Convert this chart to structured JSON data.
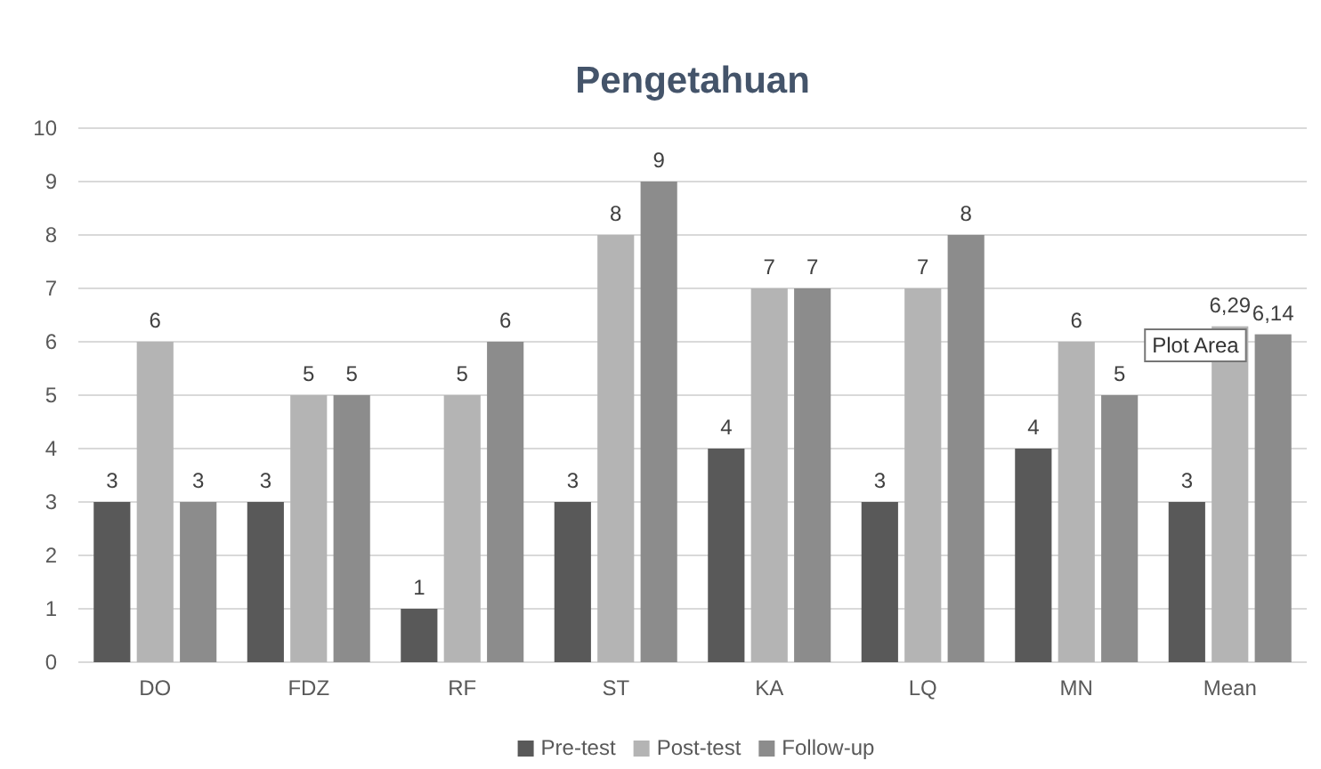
{
  "chart_data": {
    "type": "bar",
    "title": "Pengetahuan",
    "categories": [
      "DO",
      "FDZ",
      "RF",
      "ST",
      "KA",
      "LQ",
      "MN",
      "Mean"
    ],
    "series": [
      {
        "name": "Pre-test",
        "color": "#595959",
        "values": [
          3,
          3,
          1,
          3,
          4,
          3,
          4,
          3
        ],
        "value_labels": [
          "3",
          "3",
          "1",
          "3",
          "4",
          "3",
          "4",
          "3"
        ]
      },
      {
        "name": "Post-test",
        "color": "#b4b4b4",
        "values": [
          6,
          5,
          5,
          8,
          7,
          7,
          6,
          6.29
        ],
        "value_labels": [
          "6",
          "5",
          "5",
          "8",
          "7",
          "7",
          "6",
          "6,29"
        ]
      },
      {
        "name": "Follow-up",
        "color": "#8c8c8c",
        "values": [
          3,
          5,
          6,
          9,
          7,
          8,
          5,
          6.14
        ],
        "value_labels": [
          "3",
          "5",
          "6",
          "9",
          "7",
          "8",
          "5",
          "6,14"
        ]
      }
    ],
    "ylim": [
      0,
      10
    ],
    "yticks": [
      0,
      1,
      2,
      3,
      4,
      5,
      6,
      7,
      8,
      9,
      10
    ],
    "grid": "y",
    "legend": "bottom",
    "annotations": [
      "Plot Area"
    ]
  }
}
